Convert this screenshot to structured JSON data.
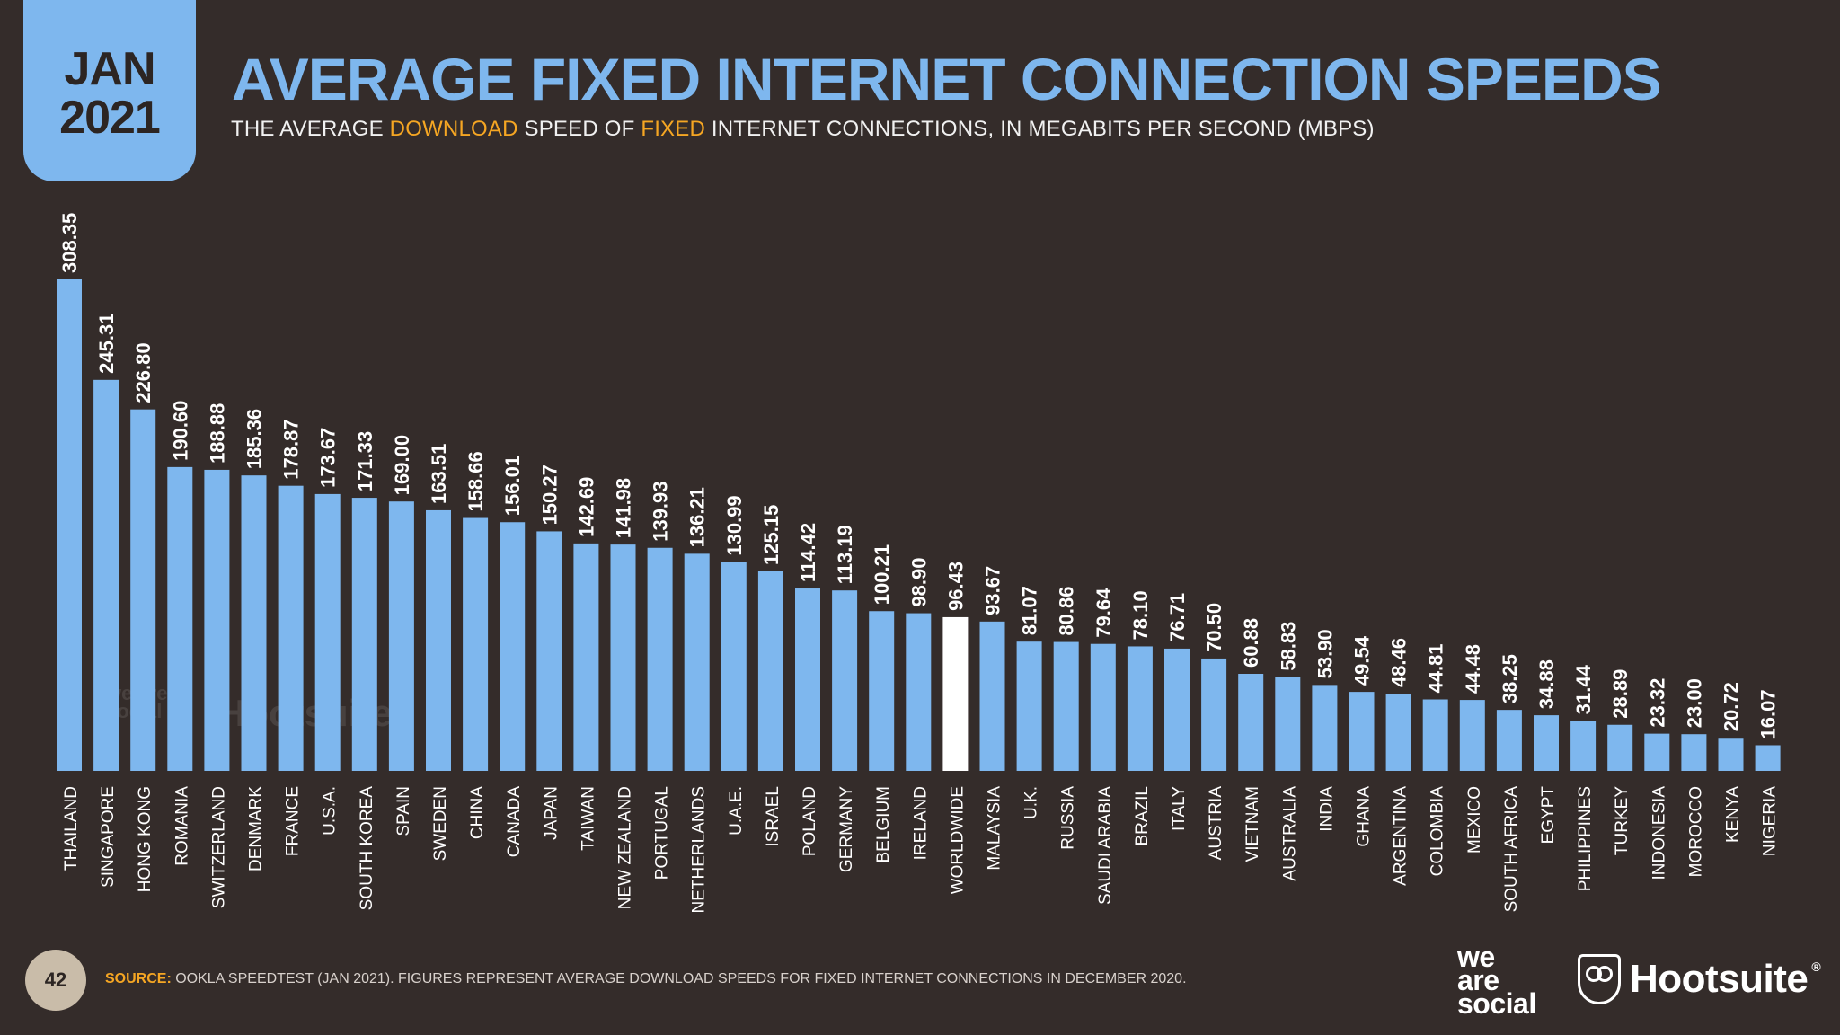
{
  "badge": {
    "month": "JAN",
    "year": "2021"
  },
  "header": {
    "title": "AVERAGE FIXED INTERNET CONNECTION SPEEDS",
    "subtitle_parts": [
      "THE AVERAGE ",
      "DOWNLOAD",
      " SPEED OF ",
      "FIXED",
      " INTERNET CONNECTIONS, IN MEGABITS PER SECOND (MBPS)"
    ]
  },
  "footer": {
    "page_number": "42",
    "source_label": "SOURCE:",
    "source_text": " OOKLA SPEEDTEST (JAN 2021). FIGURES REPRESENT AVERAGE DOWNLOAD SPEEDS FOR FIXED INTERNET CONNECTIONS IN DECEMBER 2020.",
    "logo_was": [
      "we",
      "are",
      "social"
    ],
    "logo_hootsuite": "Hootsuite",
    "logo_reg": "®"
  },
  "watermark": {
    "was": "we are social",
    "hootsuite": "Hootsuite"
  },
  "colors": {
    "bar": "#7eb7ee",
    "highlight_bar": "#ffffff",
    "background": "#342c2a",
    "accent": "#f5a623"
  },
  "chart_data": {
    "type": "bar",
    "categories": [
      "THAILAND",
      "SINGAPORE",
      "HONG KONG",
      "ROMANIA",
      "SWITZERLAND",
      "DENMARK",
      "FRANCE",
      "U.S.A.",
      "SOUTH KOREA",
      "SPAIN",
      "SWEDEN",
      "CHINA",
      "CANADA",
      "JAPAN",
      "TAIWAN",
      "NEW ZEALAND",
      "PORTUGAL",
      "NETHERLANDS",
      "U.A.E.",
      "ISRAEL",
      "POLAND",
      "GERMANY",
      "BELGIUM",
      "IRELAND",
      "WORLDWIDE",
      "MALAYSIA",
      "U.K.",
      "RUSSIA",
      "SAUDI ARABIA",
      "BRAZIL",
      "ITALY",
      "AUSTRIA",
      "VIETNAM",
      "AUSTRALIA",
      "INDIA",
      "GHANA",
      "ARGENTINA",
      "COLOMBIA",
      "MEXICO",
      "SOUTH AFRICA",
      "EGYPT",
      "PHILIPPINES",
      "TURKEY",
      "INDONESIA",
      "MOROCCO",
      "KENYA",
      "NIGERIA"
    ],
    "values": [
      308.35,
      245.31,
      226.8,
      190.6,
      188.88,
      185.36,
      178.87,
      173.67,
      171.33,
      169.0,
      163.51,
      158.66,
      156.01,
      150.27,
      142.69,
      141.98,
      139.93,
      136.21,
      130.99,
      125.15,
      114.42,
      113.19,
      100.21,
      98.9,
      96.43,
      93.67,
      81.07,
      80.86,
      79.64,
      78.1,
      76.71,
      70.5,
      60.88,
      58.83,
      53.9,
      49.54,
      48.46,
      44.81,
      44.48,
      38.25,
      34.88,
      31.44,
      28.89,
      23.32,
      23.0,
      20.72,
      16.07
    ],
    "labels": [
      "308.35",
      "245.31",
      "226.80",
      "190.60",
      "188.88",
      "185.36",
      "178.87",
      "173.67",
      "171.33",
      "169.00",
      "163.51",
      "158.66",
      "156.01",
      "150.27",
      "142.69",
      "141.98",
      "139.93",
      "136.21",
      "130.99",
      "125.15",
      "114.42",
      "113.19",
      "100.21",
      "98.90",
      "96.43",
      "93.67",
      "81.07",
      "80.86",
      "79.64",
      "78.10",
      "76.71",
      "70.50",
      "60.88",
      "58.83",
      "53.90",
      "49.54",
      "48.46",
      "44.81",
      "44.48",
      "38.25",
      "34.88",
      "31.44",
      "28.89",
      "23.32",
      "23.00",
      "20.72",
      "16.07"
    ],
    "highlight": "WORLDWIDE",
    "ylim": [
      0,
      308.35
    ],
    "grid": false,
    "legend": "none"
  }
}
